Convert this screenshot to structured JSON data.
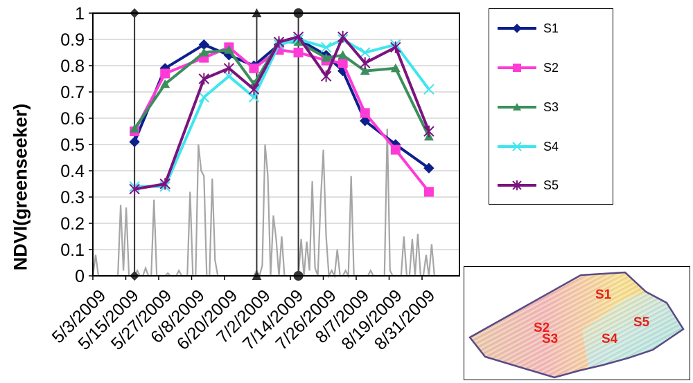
{
  "chart_data": {
    "type": "line",
    "ylabel": "NDVI(greenseeker)",
    "xlabel": "",
    "ylim": [
      0,
      1
    ],
    "yticks": [
      0,
      0.1,
      0.2,
      0.3,
      0.4,
      0.5,
      0.6,
      0.7,
      0.8,
      0.9,
      1
    ],
    "xticks": [
      "5/3/2009",
      "5/15/2009",
      "5/27/2009",
      "6/8/2009",
      "6/20/2009",
      "7/2/2009",
      "7/14/2009",
      "7/26/2009",
      "8/7/2009",
      "8/19/2009",
      "8/31/2009"
    ],
    "xrange": [
      "2009-05-03",
      "2009-09-12"
    ],
    "grid": "horizontal",
    "legend_position": "right",
    "series": [
      {
        "name": "S1",
        "color": "#0d1f8c",
        "marker": "diamond",
        "x": [
          "2009-05-18",
          "2009-05-29",
          "2009-06-12",
          "2009-06-21",
          "2009-06-30",
          "2009-07-09",
          "2009-07-16",
          "2009-07-26",
          "2009-08-01",
          "2009-08-09",
          "2009-08-20",
          "2009-09-01"
        ],
        "y": [
          0.51,
          0.79,
          0.88,
          0.84,
          0.8,
          0.88,
          0.9,
          0.84,
          0.78,
          0.59,
          0.5,
          0.41
        ]
      },
      {
        "name": "S2",
        "color": "#ff3ad6",
        "marker": "square",
        "x": [
          "2009-05-18",
          "2009-05-29",
          "2009-06-12",
          "2009-06-21",
          "2009-06-30",
          "2009-07-09",
          "2009-07-16",
          "2009-07-26",
          "2009-08-01",
          "2009-08-09",
          "2009-08-20",
          "2009-09-01"
        ],
        "y": [
          0.55,
          0.77,
          0.83,
          0.87,
          0.79,
          0.86,
          0.85,
          0.82,
          0.81,
          0.62,
          0.48,
          0.32
        ]
      },
      {
        "name": "S3",
        "color": "#3a8f5c",
        "marker": "triangle",
        "x": [
          "2009-05-18",
          "2009-05-29",
          "2009-06-12",
          "2009-06-21",
          "2009-06-30",
          "2009-07-09",
          "2009-07-16",
          "2009-07-26",
          "2009-08-01",
          "2009-08-09",
          "2009-08-20",
          "2009-09-01"
        ],
        "y": [
          0.56,
          0.73,
          0.85,
          0.86,
          0.73,
          0.89,
          0.89,
          0.83,
          0.84,
          0.78,
          0.79,
          0.53
        ]
      },
      {
        "name": "S4",
        "color": "#3fe6ee",
        "marker": "x",
        "x": [
          "2009-05-18",
          "2009-05-29",
          "2009-06-12",
          "2009-06-21",
          "2009-06-30",
          "2009-07-09",
          "2009-07-16",
          "2009-07-26",
          "2009-08-01",
          "2009-08-09",
          "2009-08-20",
          "2009-09-01"
        ],
        "y": [
          0.34,
          0.34,
          0.68,
          0.76,
          0.68,
          0.88,
          0.9,
          0.87,
          0.9,
          0.85,
          0.88,
          0.71
        ]
      },
      {
        "name": "S5",
        "color": "#7b137f",
        "marker": "star",
        "x": [
          "2009-05-18",
          "2009-05-29",
          "2009-06-12",
          "2009-06-21",
          "2009-06-30",
          "2009-07-09",
          "2009-07-16",
          "2009-07-26",
          "2009-08-01",
          "2009-08-09",
          "2009-08-20",
          "2009-09-01"
        ],
        "y": [
          0.33,
          0.35,
          0.75,
          0.79,
          0.71,
          0.89,
          0.91,
          0.76,
          0.91,
          0.81,
          0.87,
          0.55
        ]
      }
    ],
    "precipitation": {
      "color": "#a6a6a6",
      "start_date": "2009-05-03",
      "y": [
        0,
        0.08,
        0,
        0,
        0,
        0,
        0,
        0,
        0,
        0,
        0.27,
        0.02,
        0.26,
        0,
        0,
        0,
        0.02,
        0,
        0,
        0.03,
        0,
        0,
        0.29,
        0,
        0,
        0,
        0,
        0.01,
        0,
        0,
        0,
        0.02,
        0,
        0,
        0,
        0.32,
        0,
        0,
        0.5,
        0.4,
        0.38,
        0,
        0,
        0.37,
        0.06,
        0,
        0,
        0,
        0,
        0,
        0,
        0,
        0,
        0,
        0,
        0,
        0,
        0,
        0,
        0.02,
        0,
        0.04,
        0.5,
        0.38,
        0,
        0.23,
        0.14,
        0,
        0.15,
        0,
        0,
        0,
        0,
        0,
        0,
        0.14,
        0,
        0.13,
        0.02,
        0.36,
        0.03,
        0,
        0.28,
        0.48,
        0.15,
        0,
        0.02,
        0,
        0.1,
        0,
        0,
        0.02,
        0,
        0.38,
        0,
        0,
        0,
        0,
        0,
        0,
        0.02,
        0,
        0,
        0,
        0,
        0,
        0.56,
        0.02,
        0,
        0,
        0,
        0,
        0.15,
        0,
        0,
        0.14,
        0,
        0.16,
        0,
        0,
        0.08,
        0,
        0.12,
        0
      ],
      "vlines": [
        {
          "date": "2009-05-18",
          "marker": "diamond"
        },
        {
          "date": "2009-07-01",
          "marker": "triangle"
        },
        {
          "date": "2009-07-16",
          "marker": "circle"
        }
      ]
    }
  },
  "inset": {
    "labels": [
      "S1",
      "S2",
      "S3",
      "S4",
      "S5"
    ]
  }
}
